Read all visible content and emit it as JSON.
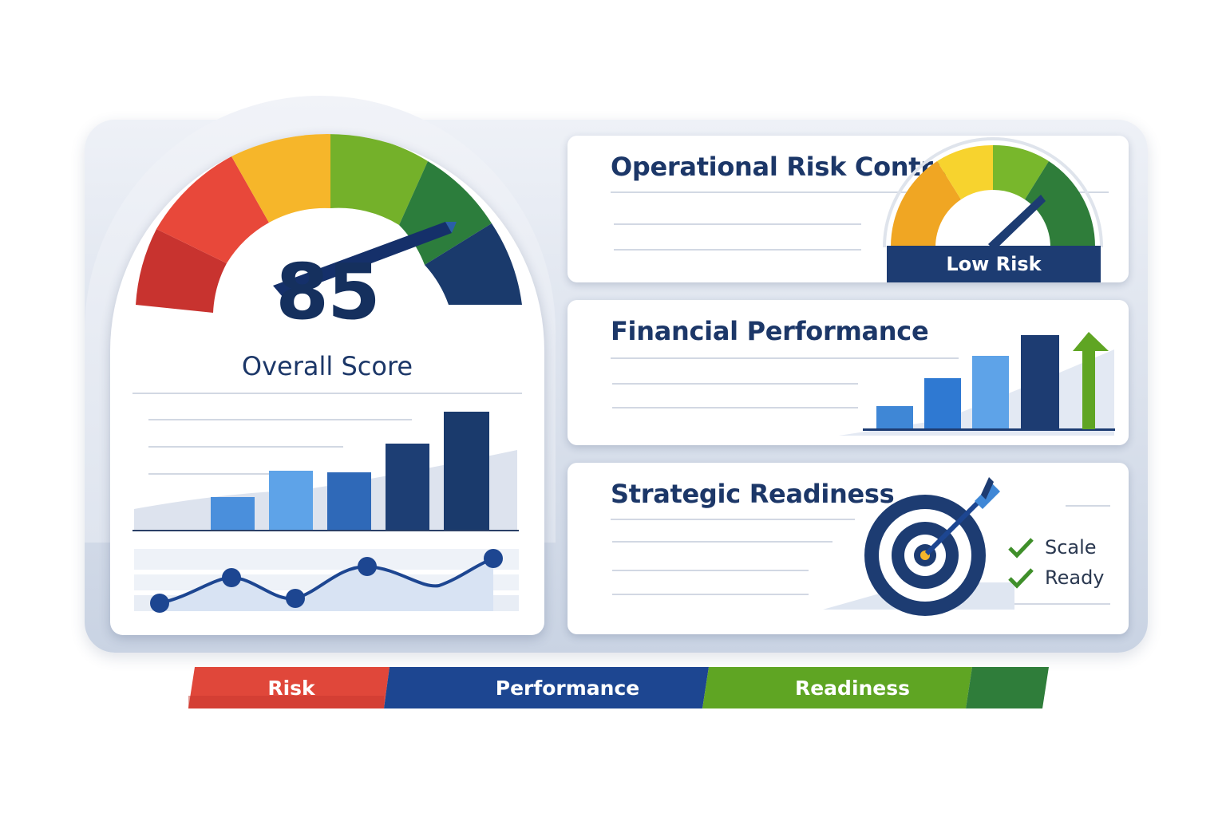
{
  "overall": {
    "score": "85",
    "label": "Overall Score",
    "gauge_colors": [
      "#c8332f",
      "#e8483a",
      "#f6b62a",
      "#74b12a",
      "#2c7d3c",
      "#1a3a6c"
    ]
  },
  "cards": {
    "operational": {
      "title": "Operational Risk Control",
      "badge": "Low Risk"
    },
    "financial": {
      "title": "Financial Performance"
    },
    "strategic": {
      "title": "Strategic Readiness",
      "checks": [
        {
          "label": "Scale",
          "icon": "check-icon"
        },
        {
          "label": "Ready",
          "icon": "check-icon"
        }
      ]
    }
  },
  "legend": [
    {
      "label": "Risk",
      "color": "#e0473a"
    },
    {
      "label": "Performance",
      "color": "#1d4691"
    },
    {
      "label": "Readiness",
      "color": "#5fa523"
    }
  ],
  "colors": {
    "navy": "#1d3c72",
    "blue": "#3f87d6",
    "light_blue": "#5ea3e8",
    "green": "#5fa523"
  }
}
